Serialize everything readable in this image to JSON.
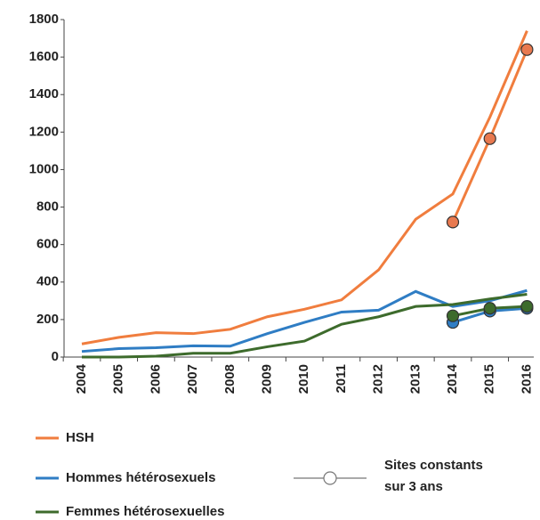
{
  "chart_data": {
    "type": "line",
    "categories": [
      "2004",
      "2005",
      "2006",
      "2007",
      "2008",
      "2009",
      "2010",
      "2011",
      "2012",
      "2013",
      "2014",
      "2015",
      "2016"
    ],
    "ylim": [
      0,
      1800
    ],
    "yticks": [
      0,
      200,
      400,
      600,
      800,
      1000,
      1200,
      1400,
      1600,
      1800
    ],
    "series": [
      {
        "name": "HSH",
        "color": "#f07d3e",
        "values": [
          70,
          105,
          130,
          125,
          148,
          215,
          255,
          305,
          465,
          735,
          870,
          1280,
          1740
        ]
      },
      {
        "name": "Hommes hétérosexuels",
        "color": "#2f7dc4",
        "values": [
          30,
          45,
          50,
          60,
          58,
          125,
          185,
          240,
          250,
          350,
          270,
          300,
          355
        ]
      },
      {
        "name": "Femmes hétérosexuelles",
        "color": "#3d6b2c",
        "values": [
          0,
          0,
          5,
          20,
          20,
          55,
          85,
          175,
          215,
          270,
          280,
          310,
          335
        ]
      },
      {
        "color": "#f07d3e",
        "marker_fill": "#e8794f",
        "markers": true,
        "values": [
          null,
          null,
          null,
          null,
          null,
          null,
          null,
          null,
          null,
          null,
          720,
          1165,
          1640
        ]
      },
      {
        "color": "#2f7dc4",
        "marker_fill": "#2f7dc4",
        "markers": true,
        "values": [
          null,
          null,
          null,
          null,
          null,
          null,
          null,
          null,
          null,
          null,
          185,
          245,
          260
        ]
      },
      {
        "color": "#3d6b2c",
        "marker_fill": "#3d6b2c",
        "markers": true,
        "values": [
          null,
          null,
          null,
          null,
          null,
          null,
          null,
          null,
          null,
          null,
          220,
          260,
          270
        ]
      }
    ],
    "markers_legend": {
      "label": [
        "Sites constants",
        "sur 3 ans"
      ],
      "color": "#aaaaaa"
    }
  }
}
